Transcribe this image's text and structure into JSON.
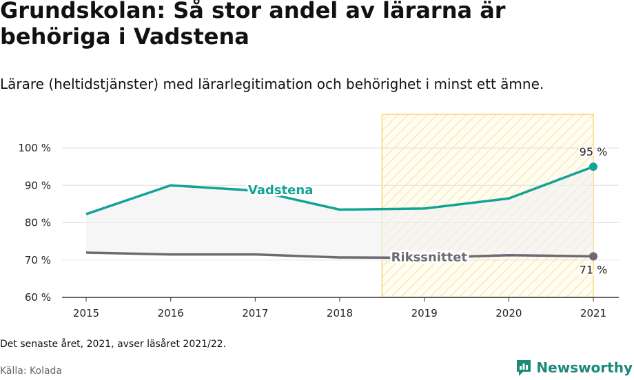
{
  "title": "Grundskolan: Så stor andel av lärarna är behöriga i Vadstena",
  "subtitle": "Lärare (heltidstjänster) med lärarlegitimation och behörighet i minst ett ämne.",
  "note": "Det senaste året, 2021, avser läsåret 2021/22.",
  "source": "Källa: Kolada",
  "brand": {
    "name": "Newsworthy",
    "icon": "newsworthy-logo-icon"
  },
  "colors": {
    "vadstena": "#12a394",
    "riket": "#6b6b73",
    "highlight": "#f7d77a",
    "fill": "#f0f0f2"
  },
  "chart_data": {
    "type": "line",
    "x": [
      2015,
      2016,
      2017,
      2018,
      2019,
      2020,
      2021
    ],
    "xticks": [
      "2015",
      "2016",
      "2017",
      "2018",
      "2019",
      "2020",
      "2021"
    ],
    "yticks": [
      "60 %",
      "70 %",
      "80 %",
      "90 %",
      "100 %"
    ],
    "ylim": [
      60,
      100
    ],
    "series": [
      {
        "name": "Vadstena",
        "values": [
          82.3,
          90.0,
          88.6,
          83.5,
          83.8,
          86.5,
          95.0
        ],
        "end_label": "95 %"
      },
      {
        "name": "Rikssnittet",
        "values": [
          72.0,
          71.5,
          71.5,
          70.7,
          70.6,
          71.3,
          71.0
        ],
        "end_label": "71 %"
      }
    ],
    "highlight_range": [
      2018.5,
      2021
    ],
    "grid": true
  }
}
